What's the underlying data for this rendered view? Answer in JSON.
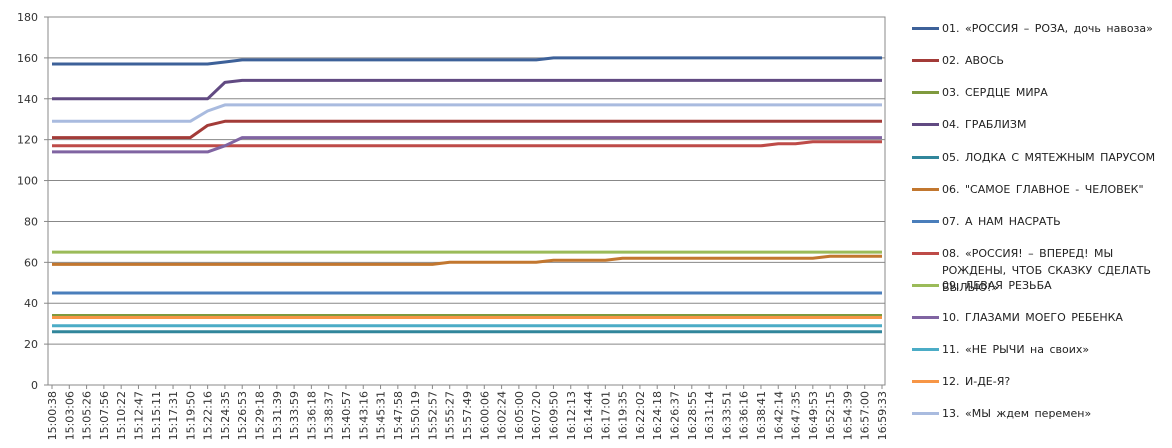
{
  "chart_data": {
    "type": "line",
    "categories": [
      "15:00:38",
      "15:03:06",
      "15:05:26",
      "15:07:56",
      "15:10:22",
      "15:12:47",
      "15:15:11",
      "15:17:31",
      "15:19:50",
      "15:22:16",
      "15:24:35",
      "15:26:53",
      "15:29:18",
      "15:31:39",
      "15:33:59",
      "15:36:18",
      "15:38:37",
      "15:40:57",
      "15:43:16",
      "15:45:31",
      "15:47:58",
      "15:50:19",
      "15:52:57",
      "15:55:27",
      "15:57:49",
      "16:00:06",
      "16:02:24",
      "16:05:00",
      "16:07:20",
      "16:09:50",
      "16:12:13",
      "16:14:44",
      "16:17:01",
      "16:19:35",
      "16:22:02",
      "16:24:18",
      "16:26:37",
      "16:28:55",
      "16:31:14",
      "16:33:51",
      "16:36:16",
      "16:38:41",
      "16:42:14",
      "16:47:35",
      "16:49:53",
      "16:52:15",
      "16:54:39",
      "16:57:00",
      "16:59:33"
    ],
    "ylim": [
      0,
      180
    ],
    "yticks": [
      0,
      20,
      40,
      60,
      80,
      100,
      120,
      140,
      160,
      180
    ],
    "grid": true,
    "legend": "right",
    "series": [
      {
        "name": "01. «РОССИЯ – РОЗА, дочь навоза»",
        "color": "#3d6199",
        "values": [
          157,
          157,
          157,
          157,
          157,
          157,
          157,
          157,
          157,
          157,
          158,
          159,
          159,
          159,
          159,
          159,
          159,
          159,
          159,
          159,
          159,
          159,
          159,
          159,
          159,
          159,
          159,
          159,
          159,
          160,
          160,
          160,
          160,
          160,
          160,
          160,
          160,
          160,
          160,
          160,
          160,
          160,
          160,
          160,
          160,
          160,
          160,
          160,
          160
        ]
      },
      {
        "name": "02. АВОСЬ",
        "color": "#a33b38",
        "values": [
          121,
          121,
          121,
          121,
          121,
          121,
          121,
          121,
          121,
          127,
          129,
          129,
          129,
          129,
          129,
          129,
          129,
          129,
          129,
          129,
          129,
          129,
          129,
          129,
          129,
          129,
          129,
          129,
          129,
          129,
          129,
          129,
          129,
          129,
          129,
          129,
          129,
          129,
          129,
          129,
          129,
          129,
          129,
          129,
          129,
          129,
          129,
          129,
          129
        ]
      },
      {
        "name": "03. СЕРДЦЕ МИРА",
        "color": "#7f9a3e",
        "values": [
          34,
          34,
          34,
          34,
          34,
          34,
          34,
          34,
          34,
          34,
          34,
          34,
          34,
          34,
          34,
          34,
          34,
          34,
          34,
          34,
          34,
          34,
          34,
          34,
          34,
          34,
          34,
          34,
          34,
          34,
          34,
          34,
          34,
          34,
          34,
          34,
          34,
          34,
          34,
          34,
          34,
          34,
          34,
          34,
          34,
          34,
          34,
          34,
          34
        ]
      },
      {
        "name": "04. ГРАБЛИЗМ",
        "color": "#614a82",
        "values": [
          140,
          140,
          140,
          140,
          140,
          140,
          140,
          140,
          140,
          140,
          148,
          149,
          149,
          149,
          149,
          149,
          149,
          149,
          149,
          149,
          149,
          149,
          149,
          149,
          149,
          149,
          149,
          149,
          149,
          149,
          149,
          149,
          149,
          149,
          149,
          149,
          149,
          149,
          149,
          149,
          149,
          149,
          149,
          149,
          149,
          149,
          149,
          149,
          149
        ]
      },
      {
        "name": "05. ЛОДКА С МЯТЕЖНЫМ  ПАРУСОМ",
        "color": "#31869b",
        "values": [
          26,
          26,
          26,
          26,
          26,
          26,
          26,
          26,
          26,
          26,
          26,
          26,
          26,
          26,
          26,
          26,
          26,
          26,
          26,
          26,
          26,
          26,
          26,
          26,
          26,
          26,
          26,
          26,
          26,
          26,
          26,
          26,
          26,
          26,
          26,
          26,
          26,
          26,
          26,
          26,
          26,
          26,
          26,
          26,
          26,
          26,
          26,
          26,
          26
        ]
      },
      {
        "name": "06. \"САМОЕ ГЛАВНОЕ - ЧЕЛОВЕК\"",
        "color": "#c2772f",
        "values": [
          59,
          59,
          59,
          59,
          59,
          59,
          59,
          59,
          59,
          59,
          59,
          59,
          59,
          59,
          59,
          59,
          59,
          59,
          59,
          59,
          59,
          59,
          59,
          60,
          60,
          60,
          60,
          60,
          60,
          61,
          61,
          61,
          61,
          62,
          62,
          62,
          62,
          62,
          62,
          62,
          62,
          62,
          62,
          62,
          62,
          63,
          63,
          63,
          63
        ]
      },
      {
        "name": "07. А НАМ НАСРАТЬ",
        "color": "#4a7ebb",
        "values": [
          45,
          45,
          45,
          45,
          45,
          45,
          45,
          45,
          45,
          45,
          45,
          45,
          45,
          45,
          45,
          45,
          45,
          45,
          45,
          45,
          45,
          45,
          45,
          45,
          45,
          45,
          45,
          45,
          45,
          45,
          45,
          45,
          45,
          45,
          45,
          45,
          45,
          45,
          45,
          45,
          45,
          45,
          45,
          45,
          45,
          45,
          45,
          45,
          45
        ]
      },
      {
        "name": "08. «РОССИЯ! – ВПЕРЕД! МЫ РОЖДЕНЫ, ЧТОБ СКАЗКУ СДЕЛАТЬ БЫЛЬЮ!»",
        "color": "#be4b48",
        "values": [
          117,
          117,
          117,
          117,
          117,
          117,
          117,
          117,
          117,
          117,
          117,
          117,
          117,
          117,
          117,
          117,
          117,
          117,
          117,
          117,
          117,
          117,
          117,
          117,
          117,
          117,
          117,
          117,
          117,
          117,
          117,
          117,
          117,
          117,
          117,
          117,
          117,
          117,
          117,
          117,
          117,
          117,
          118,
          118,
          119,
          119,
          119,
          119,
          119
        ]
      },
      {
        "name": "09. ЛЕВАЯ РЕЗЬБА",
        "color": "#9bbb59",
        "values": [
          65,
          65,
          65,
          65,
          65,
          65,
          65,
          65,
          65,
          65,
          65,
          65,
          65,
          65,
          65,
          65,
          65,
          65,
          65,
          65,
          65,
          65,
          65,
          65,
          65,
          65,
          65,
          65,
          65,
          65,
          65,
          65,
          65,
          65,
          65,
          65,
          65,
          65,
          65,
          65,
          65,
          65,
          65,
          65,
          65,
          65,
          65,
          65,
          65
        ]
      },
      {
        "name": "10. ГЛАЗАМИ МОЕГО РЕБЕНКА",
        "color": "#8064a2",
        "values": [
          114,
          114,
          114,
          114,
          114,
          114,
          114,
          114,
          114,
          114,
          117,
          121,
          121,
          121,
          121,
          121,
          121,
          121,
          121,
          121,
          121,
          121,
          121,
          121,
          121,
          121,
          121,
          121,
          121,
          121,
          121,
          121,
          121,
          121,
          121,
          121,
          121,
          121,
          121,
          121,
          121,
          121,
          121,
          121,
          121,
          121,
          121,
          121,
          121
        ]
      },
      {
        "name": "11. «НЕ РЫЧИ на своих»",
        "color": "#4bacc6",
        "values": [
          29,
          29,
          29,
          29,
          29,
          29,
          29,
          29,
          29,
          29,
          29,
          29,
          29,
          29,
          29,
          29,
          29,
          29,
          29,
          29,
          29,
          29,
          29,
          29,
          29,
          29,
          29,
          29,
          29,
          29,
          29,
          29,
          29,
          29,
          29,
          29,
          29,
          29,
          29,
          29,
          29,
          29,
          29,
          29,
          29,
          29,
          29,
          29,
          29
        ]
      },
      {
        "name": "12. И-ДЕ-Я?",
        "color": "#f79646",
        "values": [
          33,
          33,
          33,
          33,
          33,
          33,
          33,
          33,
          33,
          33,
          33,
          33,
          33,
          33,
          33,
          33,
          33,
          33,
          33,
          33,
          33,
          33,
          33,
          33,
          33,
          33,
          33,
          33,
          33,
          33,
          33,
          33,
          33,
          33,
          33,
          33,
          33,
          33,
          33,
          33,
          33,
          33,
          33,
          33,
          33,
          33,
          33,
          33,
          33
        ]
      },
      {
        "name": "13. «МЫ ждем  перемен»",
        "color": "#a9bbdf",
        "values": [
          129,
          129,
          129,
          129,
          129,
          129,
          129,
          129,
          129,
          134,
          137,
          137,
          137,
          137,
          137,
          137,
          137,
          137,
          137,
          137,
          137,
          137,
          137,
          137,
          137,
          137,
          137,
          137,
          137,
          137,
          137,
          137,
          137,
          137,
          137,
          137,
          137,
          137,
          137,
          137,
          137,
          137,
          137,
          137,
          137,
          137,
          137,
          137,
          137
        ]
      }
    ]
  }
}
